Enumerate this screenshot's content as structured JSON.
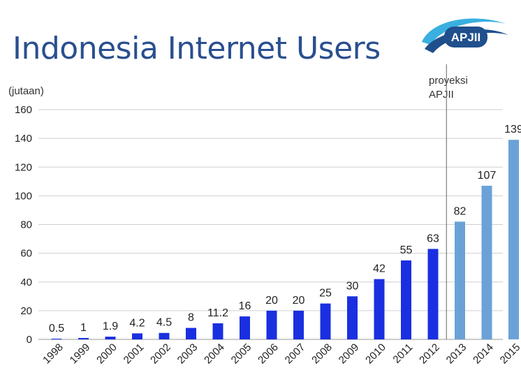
{
  "title": "Indonesia Internet Users",
  "unit_label": "(jutaan)",
  "projection_note": [
    "proyeksi",
    "APJII"
  ],
  "logo_text": "APJII",
  "colors": {
    "title": "#2a4f8f",
    "actual": "#1a2fe0",
    "projected": "#6aa2d8",
    "grid": "#cfcfcf",
    "logo_dark": "#1f4f8c",
    "logo_light": "#39b0e0"
  },
  "chart_data": {
    "type": "bar",
    "title": "Indonesia Internet Users",
    "ylabel": "(jutaan)",
    "ylim": [
      0,
      160
    ],
    "yticks": [
      0,
      20,
      40,
      60,
      80,
      100,
      120,
      140,
      160
    ],
    "grid": true,
    "categories": [
      "1998",
      "1999",
      "2000",
      "2001",
      "2002",
      "2003",
      "2004",
      "2005",
      "2006",
      "2007",
      "2008",
      "2009",
      "2010",
      "2011",
      "2012",
      "2013",
      "2014",
      "2015"
    ],
    "values": [
      0.5,
      1,
      1.9,
      4.2,
      4.5,
      8,
      11.2,
      16,
      20,
      20,
      25,
      30,
      42,
      55,
      63,
      82,
      107,
      139
    ],
    "labels": [
      "0.5",
      "1",
      "1.9",
      "4.2",
      "4.5",
      "8",
      "11.2",
      "16",
      "20",
      "20",
      "25",
      "30",
      "42",
      "55",
      "63",
      "82",
      "107",
      "139"
    ],
    "projected_from": "2013",
    "projection_label": "proyeksi APJII"
  }
}
